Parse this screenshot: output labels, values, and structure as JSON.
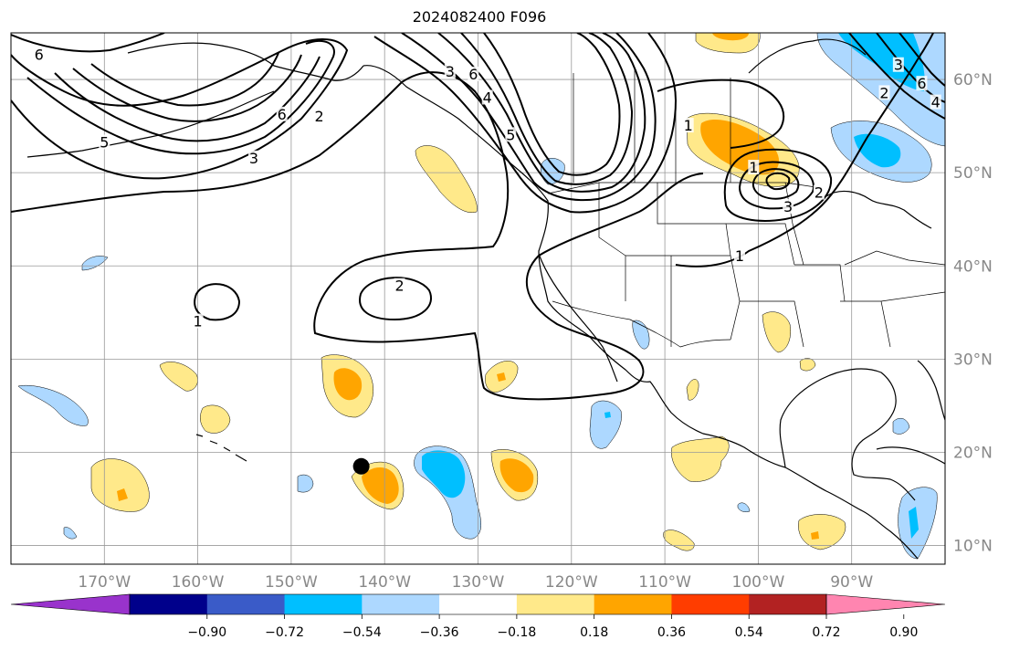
{
  "title": "2024082400 F096",
  "map": {
    "lon_range": [
      -180,
      -80
    ],
    "lat_range": [
      8,
      65
    ],
    "lon_ticks": [
      {
        "value": -170,
        "label": "170°W"
      },
      {
        "value": -160,
        "label": "160°W"
      },
      {
        "value": -150,
        "label": "150°W"
      },
      {
        "value": -140,
        "label": "140°W"
      },
      {
        "value": -130,
        "label": "130°W"
      },
      {
        "value": -120,
        "label": "120°W"
      },
      {
        "value": -110,
        "label": "110°W"
      },
      {
        "value": -100,
        "label": "100°W"
      },
      {
        "value": -90,
        "label": "90°W"
      }
    ],
    "lat_ticks": [
      {
        "value": 10,
        "label": "10°N"
      },
      {
        "value": 20,
        "label": "20°N"
      },
      {
        "value": 30,
        "label": "30°N"
      },
      {
        "value": 40,
        "label": "40°N"
      },
      {
        "value": 50,
        "label": "50°N"
      },
      {
        "value": 60,
        "label": "60°N"
      }
    ],
    "contour_labels": [
      {
        "text": "6",
        "lon": -177,
        "lat": 62.6
      },
      {
        "text": "5",
        "lon": -170,
        "lat": 53.2
      },
      {
        "text": "3",
        "lon": -154,
        "lat": 51.5
      },
      {
        "text": "6",
        "lon": -151,
        "lat": 56.2
      },
      {
        "text": "2",
        "lon": -147,
        "lat": 56.0
      },
      {
        "text": "2",
        "lon": -138.4,
        "lat": 37.8
      },
      {
        "text": "1",
        "lon": -160,
        "lat": 34.0
      },
      {
        "text": "3",
        "lon": -133,
        "lat": 60.8
      },
      {
        "text": "6",
        "lon": -130.5,
        "lat": 60.5
      },
      {
        "text": "4",
        "lon": -129,
        "lat": 58.0
      },
      {
        "text": "5",
        "lon": -126.5,
        "lat": 54.0
      },
      {
        "text": "1",
        "lon": -107.5,
        "lat": 55.0
      },
      {
        "text": "1",
        "lon": -100.5,
        "lat": 50.5
      },
      {
        "text": "3",
        "lon": -96.8,
        "lat": 46.3
      },
      {
        "text": "2",
        "lon": -93.5,
        "lat": 47.8
      },
      {
        "text": "1",
        "lon": -102,
        "lat": 41.0
      },
      {
        "text": "3",
        "lon": -85,
        "lat": 61.5
      },
      {
        "text": "2",
        "lon": -86.5,
        "lat": 58.5
      },
      {
        "text": "6",
        "lon": -82.5,
        "lat": 59.5
      },
      {
        "text": "4",
        "lon": -81,
        "lat": 57.5
      }
    ],
    "marker": {
      "lon": -142.5,
      "lat": 18.5,
      "icon": "black-dot-icon"
    }
  },
  "colorbar": {
    "colors": [
      "#9933cc",
      "#00008b",
      "#3a5bc8",
      "#00bfff",
      "#add8ff",
      "#ffffff",
      "#ffe98a",
      "#ffa500",
      "#ff3d00",
      "#b22222",
      "#ff85b0"
    ],
    "tick_labels": [
      "−0.90",
      "−0.72",
      "−0.54",
      "−0.36",
      "−0.18",
      "0.18",
      "0.36",
      "0.54",
      "0.72",
      "0.90"
    ]
  }
}
